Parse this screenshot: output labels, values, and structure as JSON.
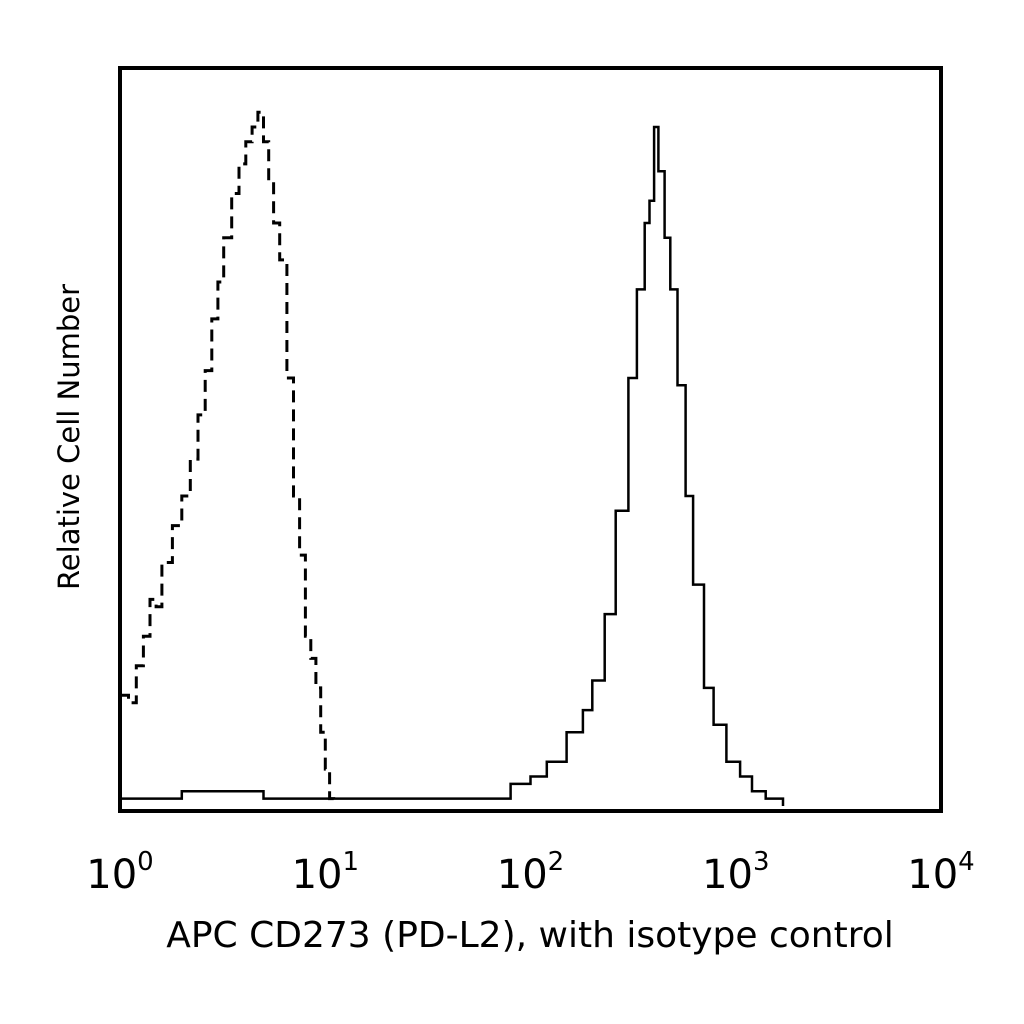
{
  "chart_data": {
    "type": "line",
    "title": "",
    "xlabel": "APC CD273 (PD-L2), with isotype control",
    "ylabel": "Relative Cell Number",
    "xscale": "log",
    "xlim": [
      1,
      10000
    ],
    "ylim": [
      0,
      100
    ],
    "grid": false,
    "legend": "none",
    "x_ticks": [
      {
        "base": "10",
        "exp": "0",
        "value": 1
      },
      {
        "base": "10",
        "exp": "1",
        "value": 10
      },
      {
        "base": "10",
        "exp": "2",
        "value": 100
      },
      {
        "base": "10",
        "exp": "3",
        "value": 1000
      },
      {
        "base": "10",
        "exp": "4",
        "value": 10000
      }
    ],
    "series": [
      {
        "style": "dashed",
        "color": "#000000",
        "points": [
          [
            1.0,
            15
          ],
          [
            1.1,
            14
          ],
          [
            1.2,
            19
          ],
          [
            1.3,
            23
          ],
          [
            1.4,
            28
          ],
          [
            1.5,
            27
          ],
          [
            1.6,
            33
          ],
          [
            1.8,
            38
          ],
          [
            2.0,
            42
          ],
          [
            2.2,
            47
          ],
          [
            2.4,
            53
          ],
          [
            2.6,
            59
          ],
          [
            2.8,
            66
          ],
          [
            3.0,
            71
          ],
          [
            3.2,
            77
          ],
          [
            3.5,
            83
          ],
          [
            3.8,
            87
          ],
          [
            4.1,
            90
          ],
          [
            4.4,
            92
          ],
          [
            4.7,
            94
          ],
          [
            5.0,
            90
          ],
          [
            5.3,
            85
          ],
          [
            5.6,
            79
          ],
          [
            6.0,
            74
          ],
          [
            6.5,
            58
          ],
          [
            7.0,
            42
          ],
          [
            7.5,
            34
          ],
          [
            8.0,
            23
          ],
          [
            8.5,
            20
          ],
          [
            9.0,
            16
          ],
          [
            9.5,
            10
          ],
          [
            10.0,
            5
          ],
          [
            10.5,
            1
          ],
          [
            11.0,
            0
          ]
        ]
      },
      {
        "style": "solid",
        "color": "#000000",
        "points": [
          [
            1.0,
            1
          ],
          [
            2.0,
            2
          ],
          [
            5.0,
            1
          ],
          [
            10.0,
            1
          ],
          [
            20.0,
            1
          ],
          [
            50.0,
            1
          ],
          [
            80.0,
            3
          ],
          [
            100.0,
            4
          ],
          [
            120.0,
            6
          ],
          [
            150.0,
            10
          ],
          [
            180.0,
            13
          ],
          [
            200.0,
            17
          ],
          [
            230.0,
            26
          ],
          [
            260.0,
            40
          ],
          [
            300.0,
            58
          ],
          [
            330.0,
            70
          ],
          [
            360.0,
            79
          ],
          [
            380.0,
            82
          ],
          [
            400.0,
            92
          ],
          [
            420.0,
            86
          ],
          [
            450.0,
            77
          ],
          [
            480.0,
            70
          ],
          [
            520.0,
            57
          ],
          [
            570.0,
            42
          ],
          [
            620.0,
            30
          ],
          [
            700.0,
            16
          ],
          [
            780.0,
            11
          ],
          [
            900.0,
            6
          ],
          [
            1050.0,
            4
          ],
          [
            1200.0,
            2
          ],
          [
            1400.0,
            1
          ],
          [
            1700.0,
            0
          ]
        ]
      }
    ]
  }
}
